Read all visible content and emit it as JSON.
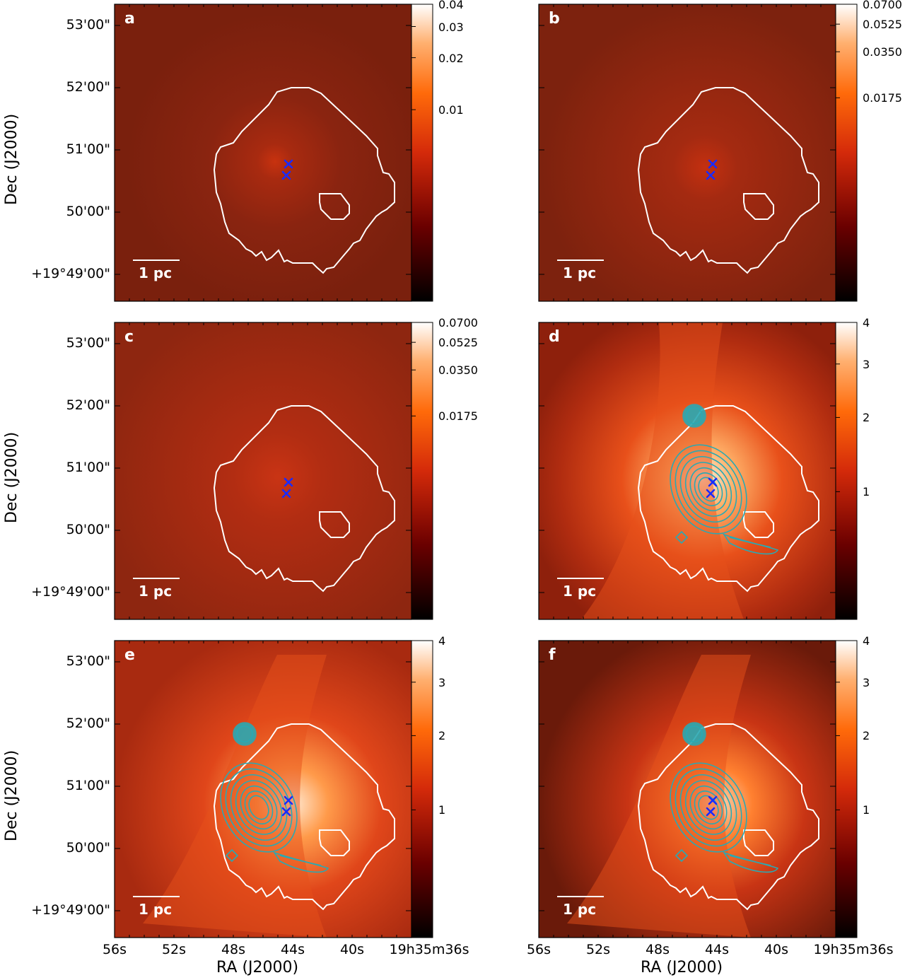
{
  "axes": {
    "ylabel": "Dec (J2000)",
    "xlabel": "RA (J2000)",
    "yticks": [
      "53'00\"",
      "52'00\"",
      "51'00\"",
      "50'00\"",
      "+19°49'00\""
    ],
    "xticks": [
      "56s",
      "52s",
      "48s",
      "44s",
      "40s",
      "19h35m36s"
    ]
  },
  "scalebar_label": "1 pc",
  "colors": {
    "region_outline": "#ffffff",
    "contours": "#2aa9b3",
    "source_markers": "#1a2bff"
  },
  "panels": [
    {
      "letter": "a",
      "colorbar": [
        "0.04",
        "0.03",
        "0.02",
        "0.01"
      ],
      "contours": false,
      "theme": "emission-a"
    },
    {
      "letter": "b",
      "colorbar": [
        "0.0700",
        "0.0525",
        "0.0350",
        "0.0175"
      ],
      "contours": false,
      "theme": "emission-b"
    },
    {
      "letter": "c",
      "colorbar": [
        "0.0700",
        "0.0525",
        "0.0350",
        "0.0175"
      ],
      "contours": false,
      "theme": "emission-c"
    },
    {
      "letter": "d",
      "colorbar": [
        "4",
        "3",
        "2",
        "1"
      ],
      "contours": true,
      "theme": "column-d"
    },
    {
      "letter": "e",
      "colorbar": [
        "4",
        "3",
        "2",
        "1"
      ],
      "contours": true,
      "theme": "column-e"
    },
    {
      "letter": "f",
      "colorbar": [
        "4",
        "3",
        "2",
        "1"
      ],
      "contours": true,
      "theme": "column-f"
    }
  ]
}
